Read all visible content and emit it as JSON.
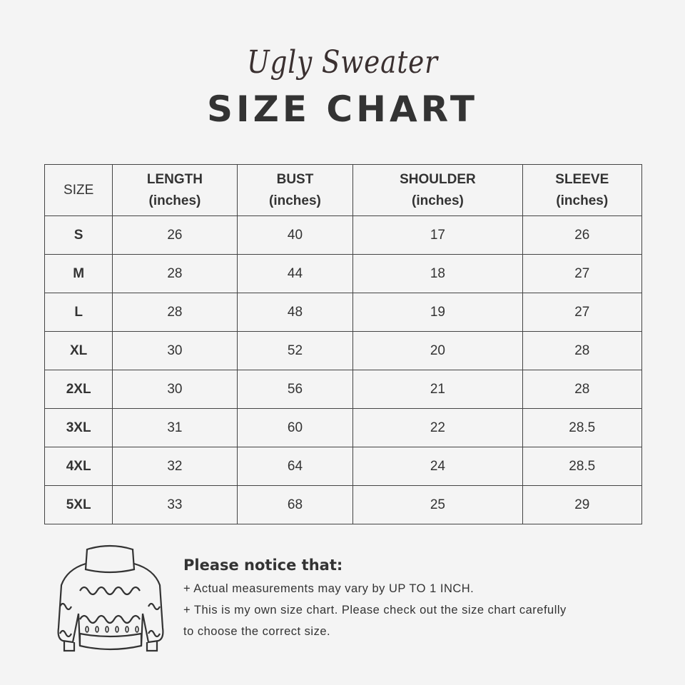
{
  "header": {
    "script_title": "Ugly Sweater",
    "title": "SIZE CHART"
  },
  "table": {
    "columns": [
      {
        "name": "SIZE",
        "unit": ""
      },
      {
        "name": "LENGTH",
        "unit": "(inches)"
      },
      {
        "name": "BUST",
        "unit": "(inches)"
      },
      {
        "name": "SHOULDER",
        "unit": "(inches)"
      },
      {
        "name": "SLEEVE",
        "unit": "(inches)"
      }
    ],
    "rows": [
      [
        "S",
        "26",
        "40",
        "17",
        "26"
      ],
      [
        "M",
        "28",
        "44",
        "18",
        "27"
      ],
      [
        "L",
        "28",
        "48",
        "19",
        "27"
      ],
      [
        "XL",
        "30",
        "52",
        "20",
        "28"
      ],
      [
        "2XL",
        "30",
        "56",
        "21",
        "28"
      ],
      [
        "3XL",
        "31",
        "60",
        "22",
        "28.5"
      ],
      [
        "4XL",
        "32",
        "64",
        "24",
        "28.5"
      ],
      [
        "5XL",
        "33",
        "68",
        "25",
        "29"
      ]
    ]
  },
  "notice": {
    "title": "Please notice that:",
    "lines": [
      "+ Actual measurements may vary by UP TO 1 INCH.",
      "+ This is my own size chart. Please check out the size chart carefully",
      "to choose the correct size."
    ]
  },
  "illustration": {
    "icon": "sweater-icon"
  }
}
